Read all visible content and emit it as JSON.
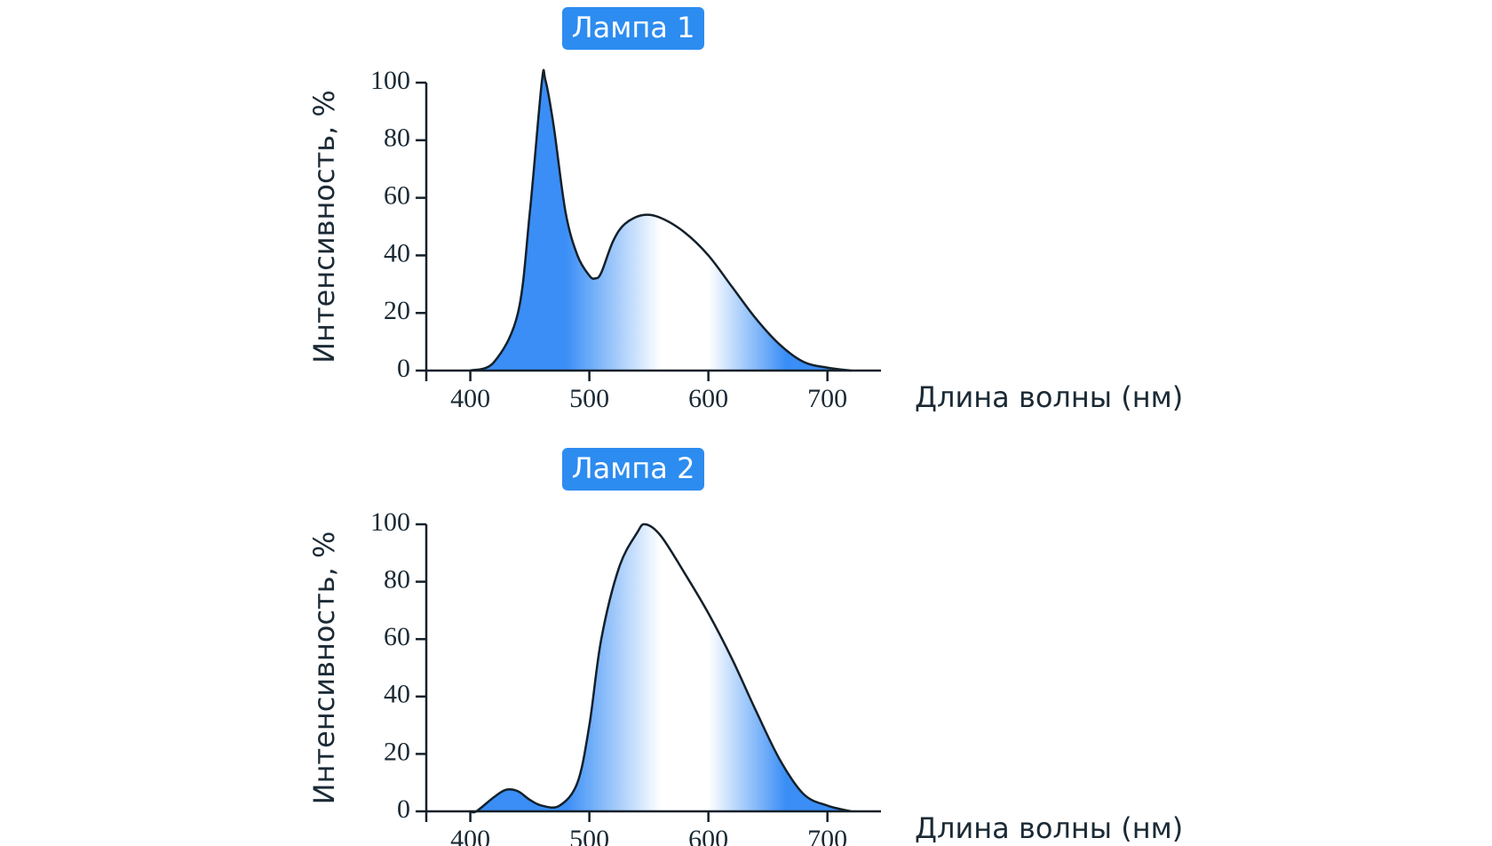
{
  "chart_data": [
    {
      "type": "area",
      "title": "Лампа 1",
      "xlabel": "Длина волны (нм)",
      "ylabel": "Интенсивность, %",
      "color": "#3a8ef6",
      "x": [
        400,
        420,
        440,
        450,
        460,
        463,
        470,
        480,
        490,
        500,
        505,
        510,
        520,
        530,
        545,
        560,
        580,
        600,
        620,
        640,
        660,
        680,
        700,
        720
      ],
      "values": [
        0,
        3,
        20,
        55,
        100,
        101,
        85,
        55,
        40,
        33,
        32,
        34,
        45,
        51,
        54,
        53,
        48,
        40,
        29,
        18,
        9,
        3,
        1,
        0
      ],
      "xlim": [
        363,
        745
      ],
      "ylim": [
        0,
        100
      ],
      "xticks": [
        400,
        500,
        600,
        700
      ],
      "yticks": [
        0,
        20,
        40,
        60,
        80,
        100
      ]
    },
    {
      "type": "area",
      "title": "Лампа 2",
      "xlabel": "Длина волны (нм)",
      "ylabel": "Интенсивность, %",
      "color": "#3a8ef6",
      "x": [
        400,
        405,
        420,
        430,
        440,
        450,
        460,
        475,
        490,
        500,
        510,
        525,
        540,
        547,
        560,
        580,
        600,
        620,
        640,
        660,
        680,
        700,
        720
      ],
      "values": [
        0,
        0,
        5,
        7.5,
        7,
        4,
        2,
        2,
        10,
        30,
        60,
        85,
        97,
        100,
        96,
        83,
        69,
        53,
        35,
        18,
        6,
        2,
        0
      ],
      "xlim": [
        363,
        745
      ],
      "ylim": [
        0,
        100
      ],
      "xticks": [
        400,
        500,
        600,
        700
      ],
      "yticks": [
        0,
        20,
        40,
        60,
        80,
        100
      ]
    }
  ]
}
